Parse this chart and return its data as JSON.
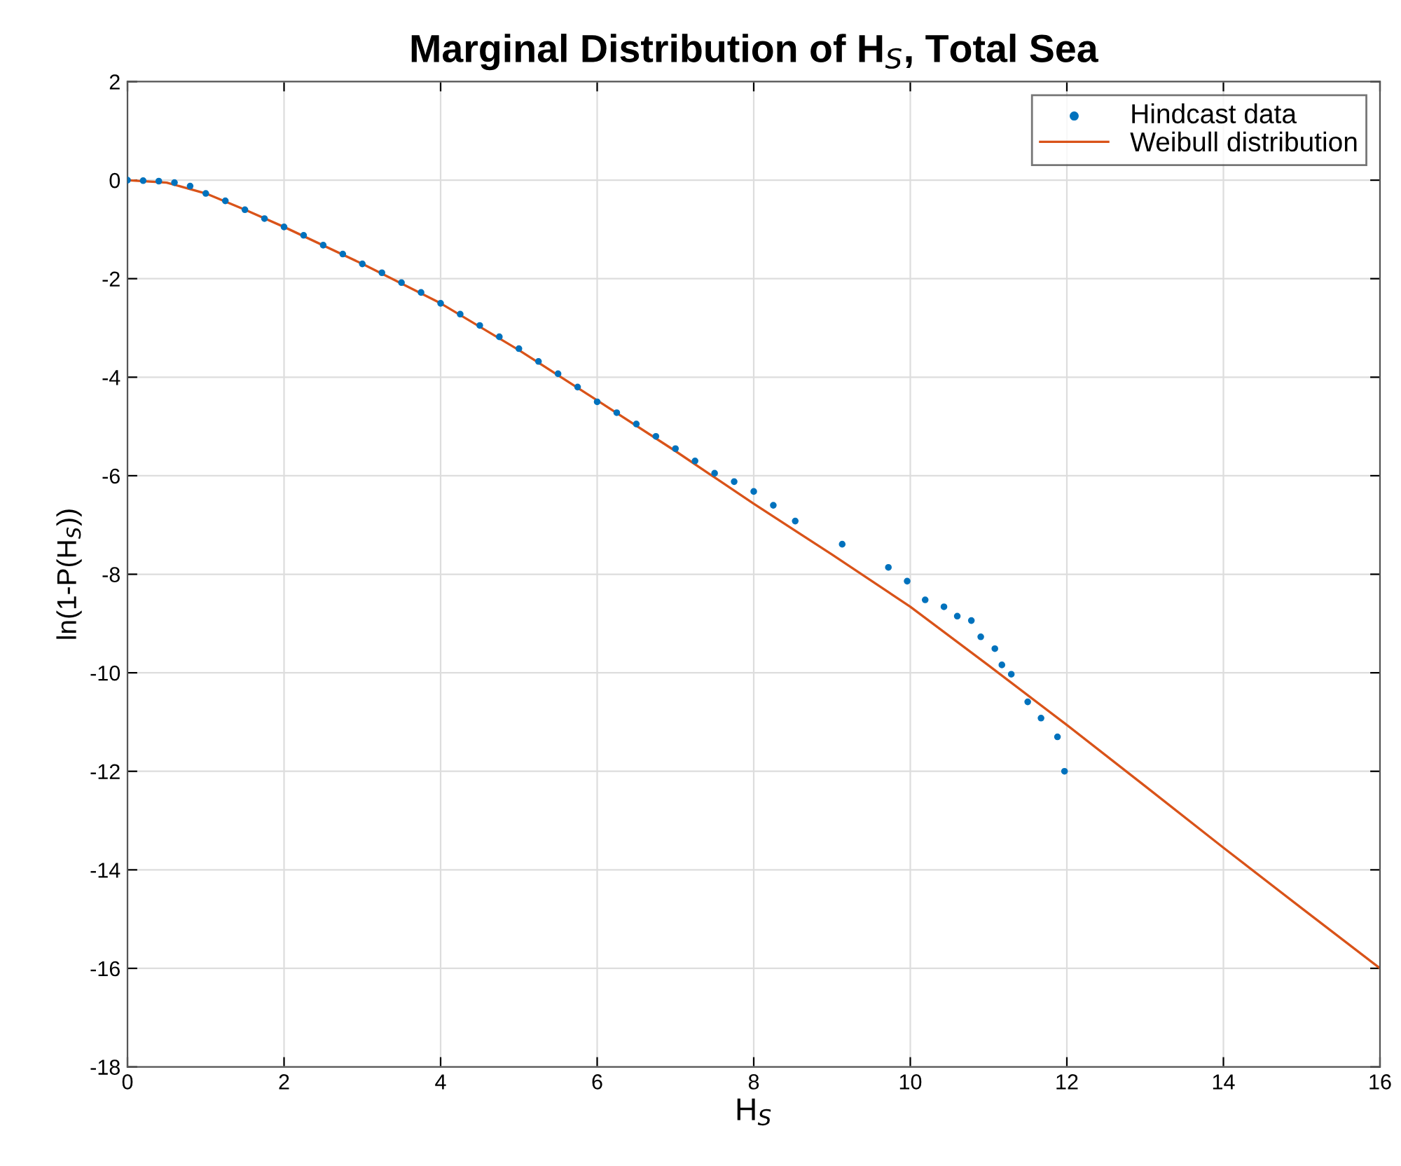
{
  "chart_data": {
    "type": "scatter",
    "title": "Marginal Distribution of H$_{S}$, Total Sea",
    "xlabel": "H$_{S}$",
    "ylabel": "ln(1-P(H$_{S}$))",
    "xlim": [
      0,
      16
    ],
    "ylim": [
      -18,
      2
    ],
    "xticks": [
      0,
      2,
      4,
      6,
      8,
      10,
      12,
      14,
      16
    ],
    "yticks": [
      -18,
      -16,
      -14,
      -12,
      -10,
      -8,
      -6,
      -4,
      -2,
      0,
      2
    ],
    "grid": true,
    "legend": "top right",
    "series": [
      {
        "name": "Hindcast data",
        "marker": "circle",
        "color": "#0072bd",
        "x": [
          0,
          0.2,
          0.4,
          0.6,
          0.8,
          1,
          1.25,
          1.5,
          1.75,
          2,
          2.25,
          2.5,
          2.75,
          3,
          3.25,
          3.5,
          3.75,
          4,
          4.25,
          4.5,
          4.75,
          5,
          5.25,
          5.5,
          5.75,
          6,
          6.25,
          6.5,
          6.75,
          7,
          7.25,
          7.5,
          7.75,
          8,
          8.25,
          8.53,
          9.13,
          9.72,
          9.96,
          10.19,
          10.43,
          10.6,
          10.78,
          10.9,
          11.08,
          11.17,
          11.29,
          11.5,
          11.67,
          11.88,
          11.97
        ],
        "values": [
          0,
          -0.01,
          -0.02,
          -0.05,
          -0.12,
          -0.27,
          -0.42,
          -0.6,
          -0.78,
          -0.95,
          -1.12,
          -1.32,
          -1.5,
          -1.7,
          -1.88,
          -2.08,
          -2.28,
          -2.5,
          -2.72,
          -2.95,
          -3.18,
          -3.42,
          -3.68,
          -3.93,
          -4.2,
          -4.5,
          -4.72,
          -4.95,
          -5.2,
          -5.45,
          -5.7,
          -5.95,
          -6.12,
          -6.32,
          -6.6,
          -6.92,
          -7.39,
          -7.86,
          -8.14,
          -8.52,
          -8.66,
          -8.85,
          -8.94,
          -9.27,
          -9.51,
          -9.84,
          -10.03,
          -10.59,
          -10.92,
          -11.3,
          -12.0
        ]
      },
      {
        "name": "Weibull distribution",
        "type": "line",
        "line_style": "solid",
        "marker": "none",
        "color": "#d95319",
        "x": [
          0,
          0.5,
          1,
          1.5,
          2,
          3,
          4,
          5,
          6,
          7,
          8,
          9,
          10,
          11,
          12,
          13,
          14,
          15,
          16
        ],
        "values": [
          0,
          -0.05,
          -0.27,
          -0.6,
          -0.95,
          -1.7,
          -2.5,
          -3.45,
          -4.47,
          -5.5,
          -6.57,
          -7.6,
          -8.66,
          -9.85,
          -11.06,
          -12.3,
          -13.55,
          -14.78,
          -16
        ]
      }
    ]
  }
}
